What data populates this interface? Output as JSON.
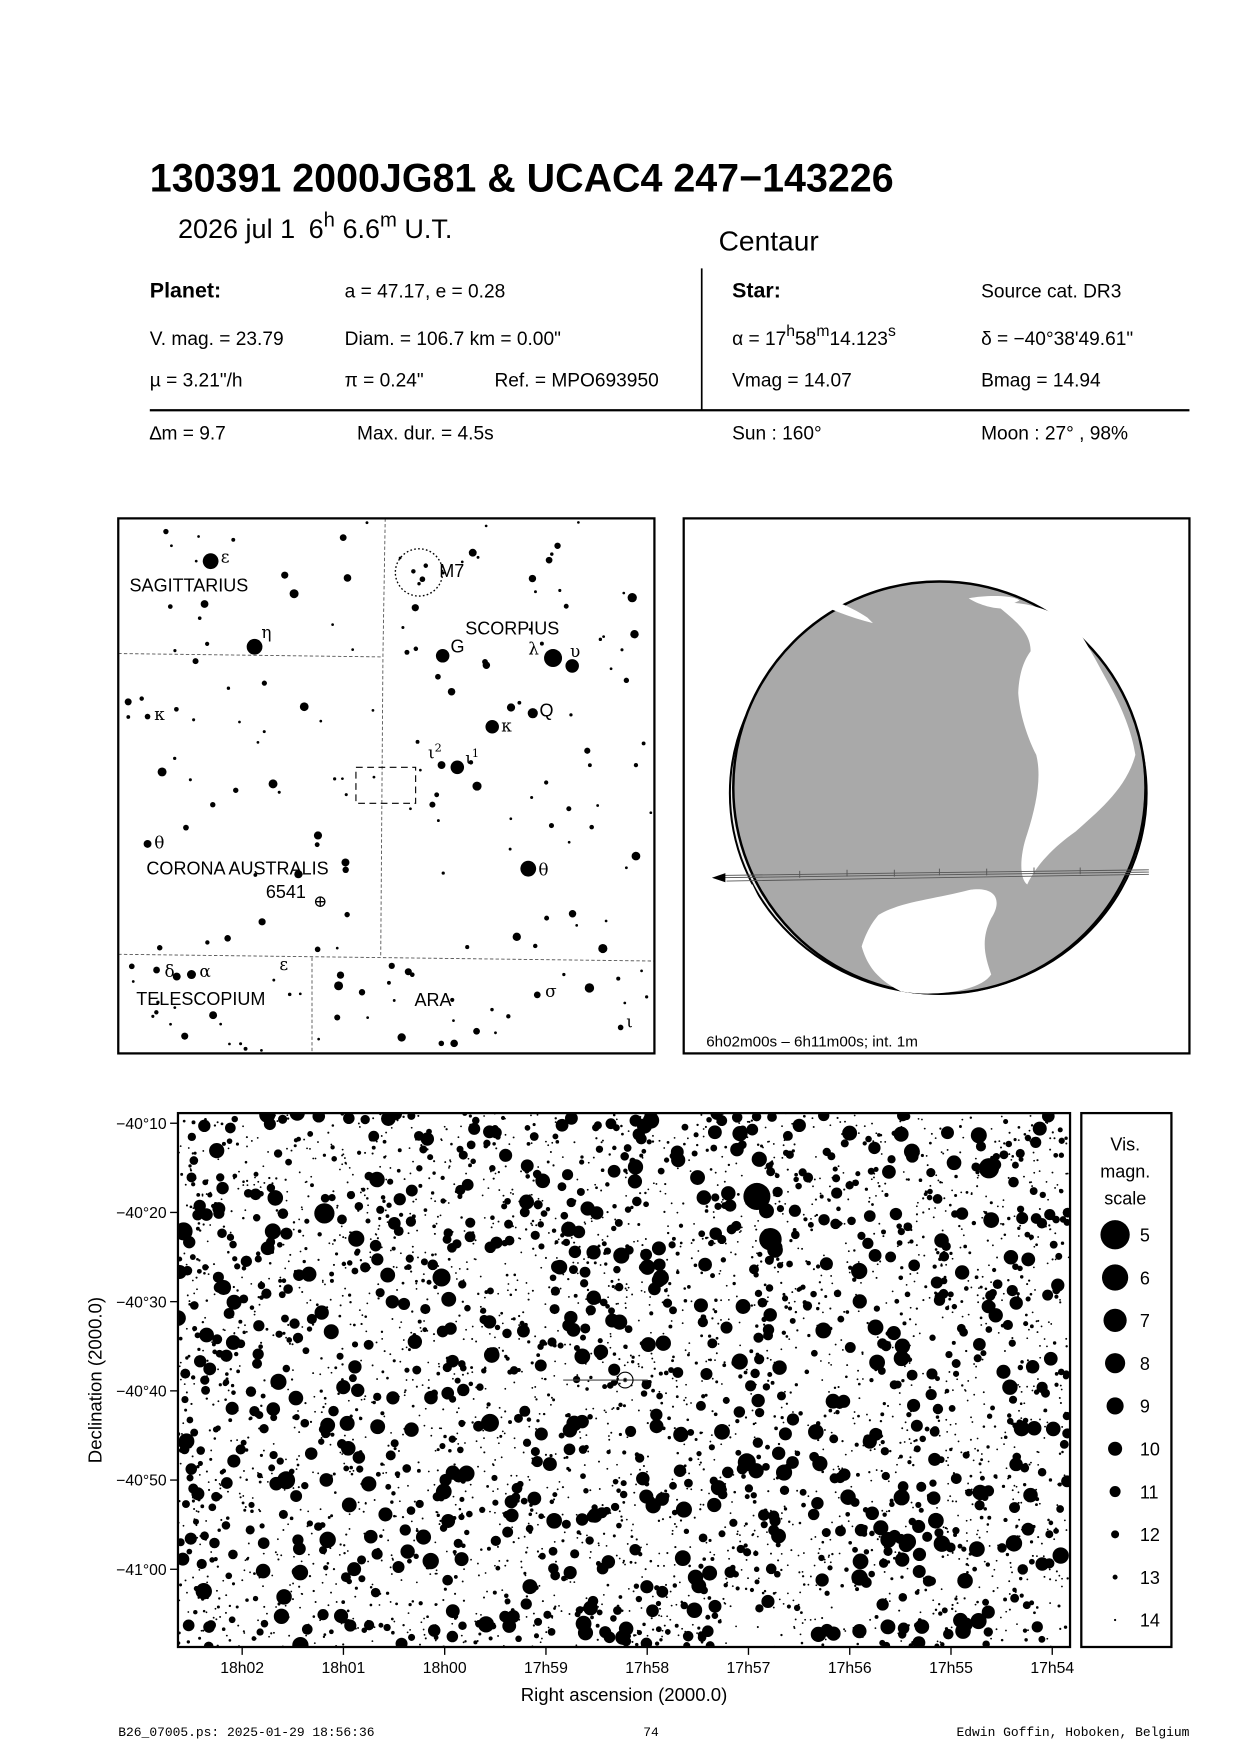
{
  "header": {
    "title": "130391 2000JG81  &  UCAC4 247−143226",
    "date": "2026 jul  1",
    "time_h": "6",
    "time_h_unit": "h",
    "time_m": " 6.6",
    "time_m_unit": "m",
    "time_suffix": " U.T.",
    "object_class": "Centaur"
  },
  "planet": {
    "heading": "Planet:",
    "orbit": "a = 47.17, e = 0.28",
    "vmag": "V. mag. = 23.79",
    "diam": "Diam. = 106.7 km = 0.00\"",
    "mu": "µ =  3.21\"/h",
    "parallax": "π =  0.24\"",
    "ref": "Ref. = MPO693950"
  },
  "star": {
    "heading": "Star:",
    "source": "Source cat.  DR3",
    "ra_prefix": "α = 17",
    "ra_h": "h",
    "ra_min": "58",
    "ra_m": "m",
    "ra_sec": "14.123",
    "ra_s": "s",
    "dec": "δ = −40°38'49.61\"",
    "vmag": "Vmag = 14.07",
    "bmag": "Bmag = 14.94"
  },
  "event": {
    "dm": "∆m = 9.7",
    "max_dur": "Max. dur. = 4.5s",
    "sun": "Sun : 160°",
    "moon": "Moon :  27° , 98%"
  },
  "finder_chart": {
    "constellations": [
      "SAGITTARIUS",
      "SCORPIUS",
      "CORONA AUSTRALIS",
      "TELESCOPIUM",
      "ARA"
    ],
    "cluster_label": "M7",
    "object_label": "6541",
    "star_labels": {
      "sgr_epsilon": "ε",
      "sgr_eta": "η",
      "sco_G": "G",
      "sco_lambda": "λ",
      "sco_upsilon": "υ",
      "sco_kappa": "κ",
      "sco_Q": "Q",
      "sco_iota2": "ι",
      "sco_iota2_sup": "2",
      "sco_iota1": "ι",
      "sco_iota1_sup": "1",
      "sco_theta": "θ",
      "cra_kappa": "κ",
      "cra_theta": "θ",
      "tel_delta": "δ",
      "tel_alpha": "α",
      "tel_epsilon": "ε",
      "ara_sigma": "σ",
      "ara_iota": "ι"
    }
  },
  "globe": {
    "caption": "6h02m00s –  6h11m00s; int.  1m",
    "ocean_color": "#a9a9a9",
    "land_color": "#ffffff"
  },
  "chart_data": {
    "type": "scatter",
    "xlabel": "Right ascension (2000.0)",
    "ylabel": "Declination (2000.0)",
    "x_ticks": [
      "18h02",
      "18h01",
      "18h00",
      "17h59",
      "17h58",
      "17h57",
      "17h56",
      "17h55",
      "17h54"
    ],
    "y_ticks": [
      "−40°10",
      "−40°20",
      "−40°30",
      "−40°40",
      "−40°50",
      "−41°00"
    ],
    "xlim": [
      "18h02.6m",
      "17h53.8m"
    ],
    "ylim": [
      "−40°09'",
      "−41°08'"
    ],
    "target": {
      "ra": "17h58m14.123s",
      "dec": "−40°38'49.61\""
    },
    "legend": {
      "title": [
        "Vis.",
        "magn.",
        "scale"
      ],
      "magnitudes": [
        "5",
        "6",
        "7",
        "8",
        "9",
        "10",
        "11",
        "12",
        "13",
        "14"
      ],
      "placement": "right"
    }
  },
  "footer": {
    "file": "B26_07005.ps: 2025-01-29 18:56:36",
    "page": "74",
    "author": "Edwin Goffin, Hoboken, Belgium"
  }
}
